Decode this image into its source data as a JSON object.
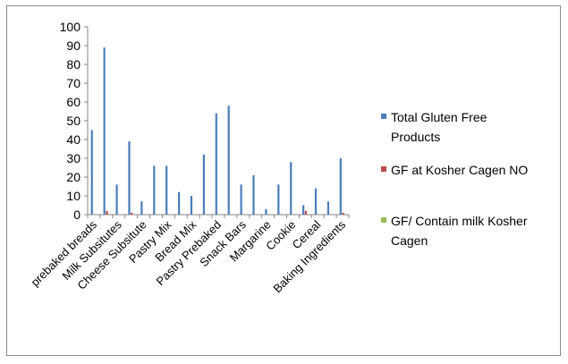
{
  "chart_data": {
    "type": "bar",
    "categories": [
      "prebaked breads",
      "",
      "Milk Subsitutes",
      "",
      "Cheese Subsitute",
      "",
      "Pastry Mix",
      "",
      "Bread Mix",
      "",
      "Pastry Prebaked",
      "",
      "Snack Bars",
      "",
      "Margarine",
      "",
      "Cookie",
      "",
      "Cereal",
      "",
      "Baking Ingredients"
    ],
    "series": [
      {
        "name": "Total Gluten Free Products",
        "color": "#4a7ebb",
        "values": [
          45,
          89,
          16,
          39,
          7,
          26,
          26,
          12,
          10,
          32,
          54,
          58,
          16,
          21,
          3,
          16,
          28,
          5,
          14,
          7,
          30
        ]
      },
      {
        "name": "GF at Kosher Cagen NO",
        "color": "#be4b48",
        "values": [
          0,
          2,
          0,
          1,
          0,
          0,
          0,
          0,
          0,
          0,
          0,
          0,
          0,
          0,
          0,
          0,
          0,
          2,
          0,
          0,
          1
        ]
      },
      {
        "name": "GF/ Contain milk  Kosher Cagen",
        "color": "#98b954",
        "values": [
          0,
          0,
          0,
          0,
          0,
          0,
          0,
          0,
          0,
          0,
          0,
          0,
          0,
          0,
          0,
          0,
          0,
          0,
          0,
          0,
          0
        ]
      }
    ],
    "ylim": [
      0,
      100
    ],
    "yticks": [
      0,
      10,
      20,
      30,
      40,
      50,
      60,
      70,
      80,
      90,
      100
    ],
    "grid": false,
    "legend_position": "right",
    "legend": [
      {
        "lines": [
          "Total Gluten Free",
          "Products"
        ],
        "color": "#4a7ebb"
      },
      {
        "lines": [
          "GF at Kosher Cagen NO"
        ],
        "color": "#be4b48"
      },
      {
        "lines": [
          "GF/ Contain milk  Kosher",
          "Cagen"
        ],
        "color": "#98b954"
      }
    ]
  }
}
